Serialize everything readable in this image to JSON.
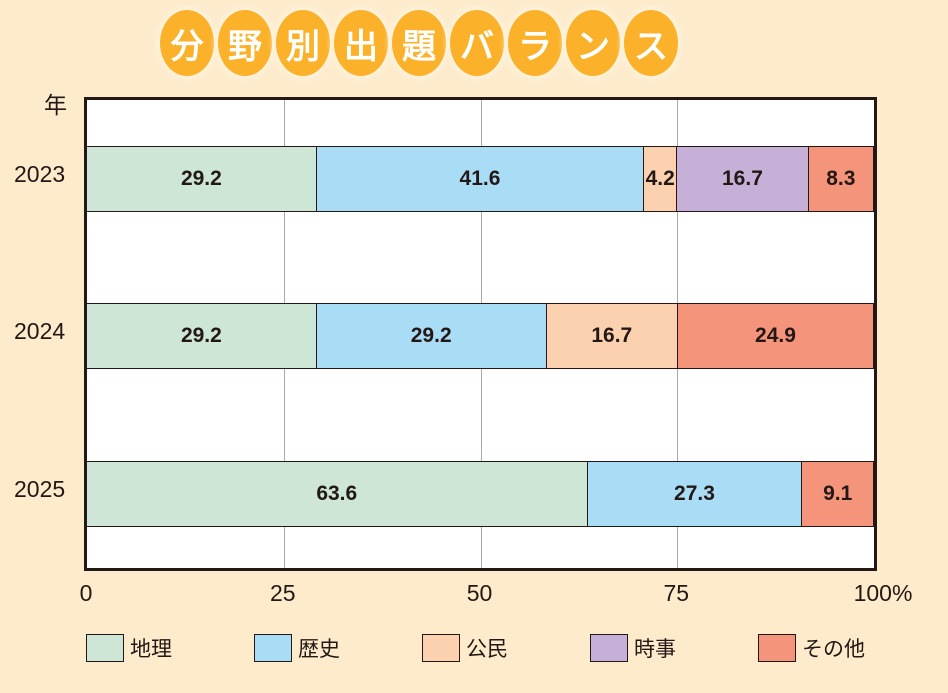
{
  "chart_data": {
    "type": "bar",
    "orientation": "horizontal-stacked",
    "title": "分野別出題バランス",
    "ylabel": "年",
    "categories": [
      "2023",
      "2024",
      "2025"
    ],
    "xlim": [
      0,
      100
    ],
    "xticks": [
      "0",
      "25",
      "50",
      "75",
      "100%"
    ],
    "xtick_values": [
      0,
      25,
      50,
      75,
      100
    ],
    "grid": true,
    "legend_position": "bottom",
    "series": [
      {
        "name": "地理",
        "color": "#cde6d6",
        "values": [
          29.2,
          29.2,
          63.6
        ]
      },
      {
        "name": "歴史",
        "color": "#a9ddf6",
        "values": [
          41.6,
          29.2,
          27.3
        ]
      },
      {
        "name": "公民",
        "color": "#fcd1b0",
        "values": [
          4.2,
          16.7,
          null
        ]
      },
      {
        "name": "時事",
        "color": "#c6b0d7",
        "values": [
          16.7,
          null,
          null
        ]
      },
      {
        "name": "その他",
        "color": "#f4957b",
        "values": [
          8.3,
          24.9,
          9.1
        ]
      }
    ]
  },
  "title_chars": [
    "分",
    "野",
    "別",
    "出",
    "題",
    "バ",
    "ラ",
    "ン",
    "ス"
  ]
}
